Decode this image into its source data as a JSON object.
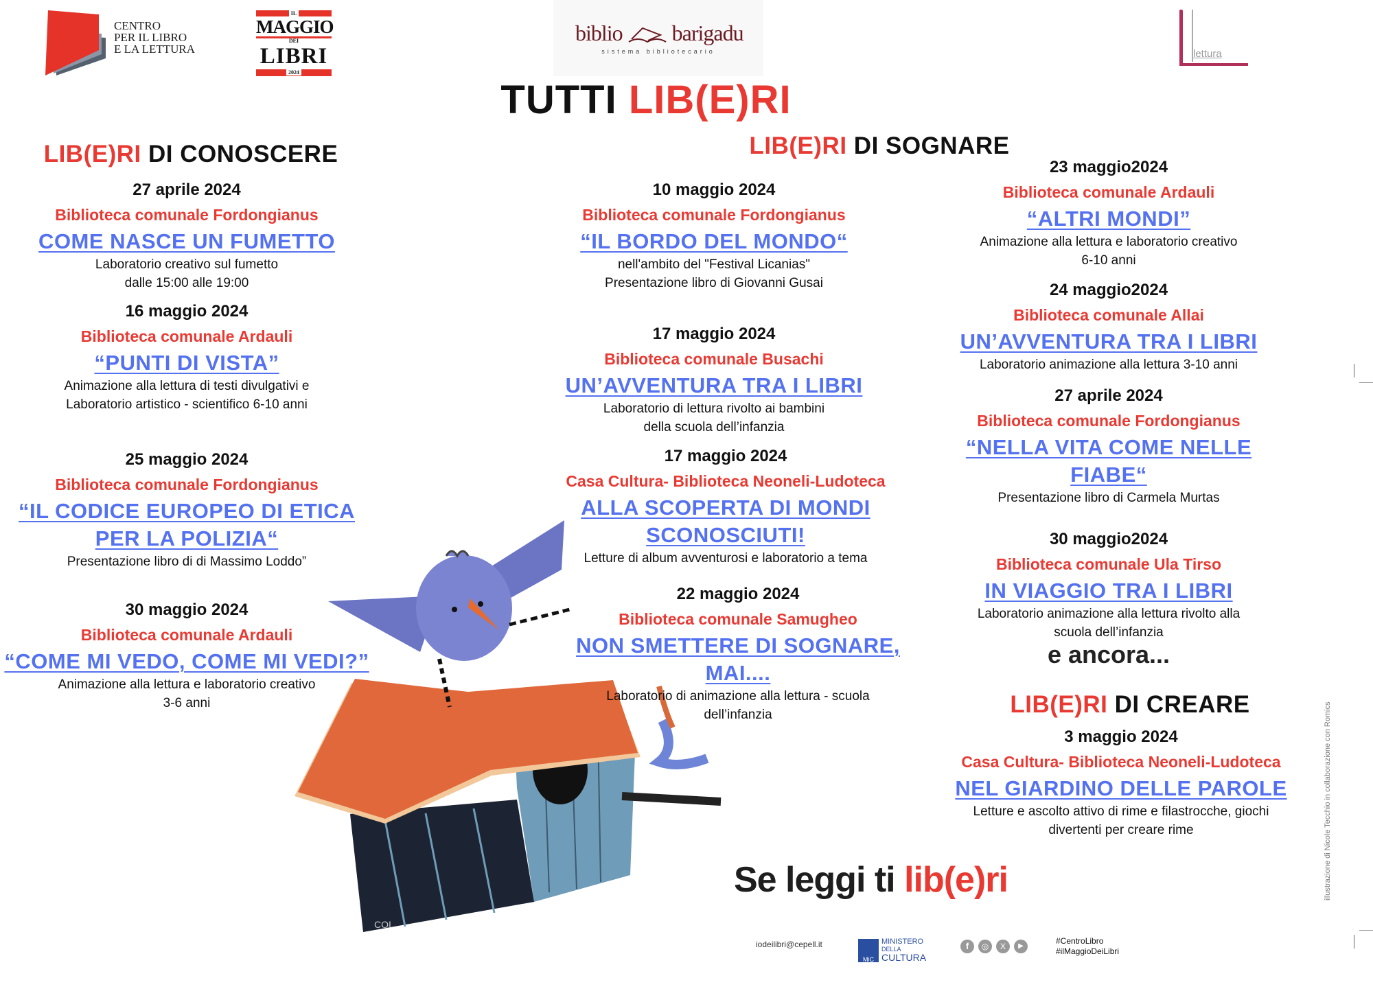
{
  "logos": {
    "cepell": [
      "CENTRO",
      "PER IL LIBRO",
      "E LA LETTURA"
    ],
    "maggio": {
      "top": "IL",
      "line1": "MAGGIO",
      "mid": "DEI",
      "line2": "LIBRI",
      "year": "2024"
    },
    "biblio": {
      "left": "biblio",
      "right": "barigadu",
      "sub": "sistema bibliotecario"
    },
    "lettura": "lettura"
  },
  "title": {
    "black": "TUTTI ",
    "red": "LIB(E)RI"
  },
  "columns": {
    "left": {
      "heading": {
        "red": "LIB(E)RI",
        "black": " DI CONOSCERE"
      },
      "events": [
        {
          "date": "27 aprile 2024",
          "library": "Biblioteca comunale Fordongianus",
          "title": [
            "COME NASCE UN FUMETTO"
          ],
          "desc": [
            "Laboratorio creativo sul fumetto",
            "dalle 15:00 alle 19:00"
          ]
        },
        {
          "date": "16 maggio 2024",
          "library": "Biblioteca comunale Ardauli",
          "title": [
            "“PUNTI DI VISTA”"
          ],
          "desc": [
            "Animazione alla lettura di testi divulgativi e",
            "Laboratorio artistico - scientifico 6-10 anni"
          ]
        },
        {
          "date": "25 maggio 2024",
          "library": "Biblioteca comunale Fordongianus",
          "title": [
            "“IL CODICE EUROPEO DI ETICA",
            "PER LA POLIZIA“"
          ],
          "desc": [
            "Presentazione libro di  di Massimo Loddo”"
          ]
        },
        {
          "date": "30 maggio 2024",
          "library": "Biblioteca comunale Ardauli",
          "title": [
            "“COME MI VEDO, COME MI VEDI?”"
          ],
          "desc": [
            "Animazione alla lettura e laboratorio creativo",
            "3-6 anni"
          ]
        }
      ]
    },
    "middle": {
      "heading": {
        "red": "LIB(E)RI",
        "black": " DI SOGNARE"
      },
      "events": [
        {
          "date": "10 maggio 2024",
          "library": "Biblioteca comunale Fordongianus",
          "title": [
            "“IL BORDO DEL MONDO“ "
          ],
          "desc": [
            "nell'ambito del \"Festival Licanias\"",
            "Presentazione libro di Giovanni Gusai"
          ]
        },
        {
          "date": "17 maggio 2024",
          "library": "Biblioteca comunale Busachi",
          "title": [
            "UN’AVVENTURA TRA I LIBRI"
          ],
          "desc": [
            "Laboratorio di lettura rivolto ai bambini",
            "della scuola dell’infanzia"
          ]
        },
        {
          "date": "17 maggio 2024",
          "library": "Casa Cultura- Biblioteca Neoneli-Ludoteca",
          "title": [
            "ALLA SCOPERTA DI MONDI",
            "SCONOSCIUTI!"
          ],
          "desc": [
            "Letture di album avventurosi e laboratorio a tema"
          ]
        },
        {
          "date": "22 maggio 2024",
          "library": "Biblioteca comunale Samugheo",
          "title": [
            "NON SMETTERE DI SOGNARE,",
            "MAI...."
          ],
          "desc": [
            "Laboratorio di animazione alla lettura - scuola",
            "dell’infanzia"
          ]
        }
      ]
    },
    "right": {
      "events": [
        {
          "date": "23 maggio2024",
          "library": "Biblioteca comunale Ardauli",
          "title": [
            "“ALTRI MONDI”"
          ],
          "desc": [
            "Animazione alla lettura e laboratorio creativo",
            "6-10 anni"
          ]
        },
        {
          "date": "24 maggio2024",
          "library": "Biblioteca comunale Allai",
          "title": [
            "UN’AVVENTURA TRA I LIBRI"
          ],
          "desc": [
            "Laboratorio animazione alla lettura  3-10 anni"
          ]
        },
        {
          "date": "27 aprile 2024",
          "library": "Biblioteca comunale Fordongianus",
          "title": [
            "“NELLA VITA COME NELLE",
            "FIABE“"
          ],
          "desc": [
            "Presentazione libro di Carmela Murtas"
          ]
        },
        {
          "date": "30 maggio2024",
          "library": "Biblioteca comunale Ula Tirso",
          "title": [
            "IN VIAGGIO TRA I LIBRI "
          ],
          "desc": [
            "Laboratorio animazione alla lettura rivolto alla",
            "scuola dell’infanzia"
          ]
        }
      ],
      "more": "e ancora..."
    },
    "create": {
      "heading": {
        "red": "LIB(E)RI",
        "black": " DI CREARE"
      },
      "events": [
        {
          "date": "3 maggio 2024",
          "library": "Casa Cultura- Biblioteca Neoneli-Ludoteca",
          "title": [
            "NEL GIARDINO DELLE PAROLE"
          ],
          "desc": [
            "Letture e ascolto attivo di rime e filastrocche, giochi",
            "divertenti per creare rime"
          ]
        }
      ]
    }
  },
  "slogan": {
    "black": "Se leggi ti ",
    "red": "lib(e)ri"
  },
  "footer": {
    "email": "iodeilibri@cepell.it",
    "ministry": [
      "MINISTERO",
      "DELLA",
      "CULTURA"
    ],
    "ministry_badge": "MiC",
    "social": [
      "facebook-icon",
      "instagram-icon",
      "x-icon",
      "youtube-icon"
    ],
    "hashtags": [
      "#CentroLibro",
      "#ilMaggioDeiLibri"
    ]
  },
  "credit": "illustrazione di Nicole Tecchio in collaborazione con Romics",
  "colors": {
    "red": "#e83a33",
    "blue": "#5471f0",
    "text": "#111111"
  }
}
